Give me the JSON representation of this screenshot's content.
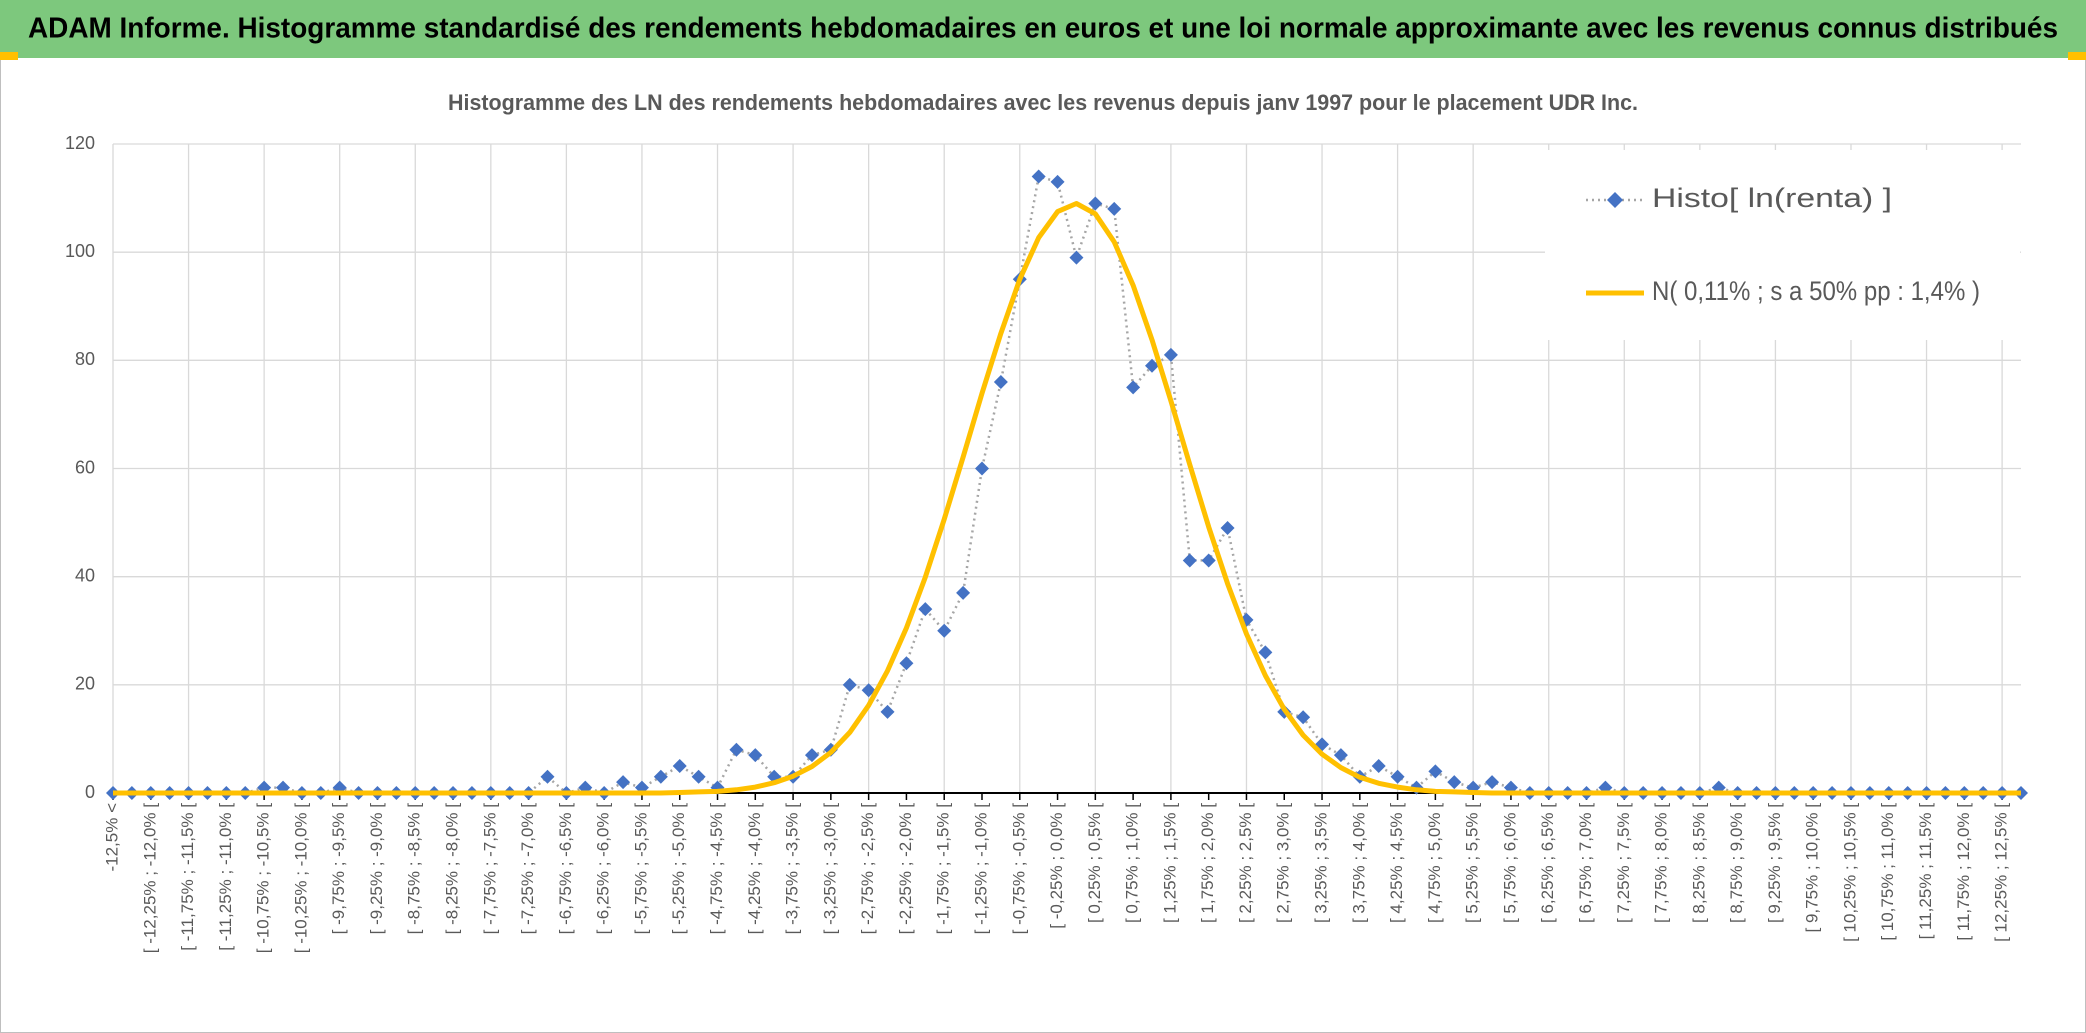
{
  "header": {
    "title": "ADAM Informe. Histogramme standardisé des rendements hebdomadaires en euros et une loi normale approximante avec les revenus connus distribués"
  },
  "chart_data": {
    "type": "line",
    "title": "Histogramme des LN des rendements hebdomadaires avec les revenus depuis janv 1997 pour le placement UDR Inc.",
    "categories": [
      "-12,5% <",
      null,
      "[ -12,25% ; -12,0% [",
      null,
      "[ -11,75% ; -11,5% [",
      null,
      "[ -11,25% ; -11,0% [",
      null,
      "[ -10,75% ; -10,5% [",
      null,
      "[ -10,25% ; -10,0% [",
      null,
      "[ -9,75% ; -9,5% [",
      null,
      "[ -9,25% ; -9,0% [",
      null,
      "[ -8,75% ; -8,5% [",
      null,
      "[ -8,25% ; -8,0% [",
      null,
      "[ -7,75% ; -7,5% [",
      null,
      "[ -7,25% ; -7,0% [",
      null,
      "[ -6,75% ; -6,5% [",
      null,
      "[ -6,25% ; -6,0% [",
      null,
      "[ -5,75% ; -5,5% [",
      null,
      "[ -5,25% ; -5,0% [",
      null,
      "[ -4,75% ; -4,5% [",
      null,
      "[ -4,25% ; -4,0% [",
      null,
      "[ -3,75% ; -3,5% [",
      null,
      "[ -3,25% ; -3,0% [",
      null,
      "[ -2,75% ; -2,5% [",
      null,
      "[ -2,25% ; -2,0% [",
      null,
      "[ -1,75% ; -1,5% [",
      null,
      "[ -1,25% ; -1,0% [",
      null,
      "[ -0,75% ; -0,5% [",
      null,
      "[ -0,25% ; 0,0% [",
      null,
      "[ 0,25% ; 0,5% [",
      null,
      "[ 0,75% ; 1,0% [",
      null,
      "[ 1,25% ; 1,5% [",
      null,
      "[ 1,75% ; 2,0% [",
      null,
      "[ 2,25% ; 2,5% [",
      null,
      "[ 2,75% ; 3,0% [",
      null,
      "[ 3,25% ; 3,5% [",
      null,
      "[ 3,75% ; 4,0% [",
      null,
      "[ 4,25% ; 4,5% [",
      null,
      "[ 4,75% ; 5,0% [",
      null,
      "[ 5,25% ; 5,5% [",
      null,
      "[ 5,75% ; 6,0% [",
      null,
      "[ 6,25% ; 6,5% [",
      null,
      "[ 6,75% ; 7,0% [",
      null,
      "[ 7,25% ; 7,5% [",
      null,
      "[ 7,75% ; 8,0% [",
      null,
      "[ 8,25% ; 8,5% [",
      null,
      "[ 8,75% ; 9,0% [",
      null,
      "[ 9,25% ; 9,5% [",
      null,
      "[ 9,75% ; 10,0% [",
      null,
      "[ 10,25% ; 10,5% [",
      null,
      "[ 10,75% ; 11,0% [",
      null,
      "[ 11,25% ; 11,5% [",
      null,
      "[ 11,75% ; 12,0% [",
      null,
      "[ 12,25% ; 12,5% [",
      null
    ],
    "series": [
      {
        "name": "Histo[ ln(renta) ]",
        "color": "#4472c4",
        "values": [
          0,
          0,
          0,
          0,
          0,
          0,
          0,
          0,
          1,
          1,
          0,
          0,
          1,
          0,
          0,
          0,
          0,
          0,
          0,
          0,
          0,
          0,
          0,
          3,
          0,
          1,
          0,
          2,
          1,
          3,
          5,
          3,
          1,
          8,
          7,
          3,
          3,
          7,
          8,
          20,
          19,
          15,
          24,
          34,
          30,
          37,
          60,
          76,
          95,
          114,
          113,
          99,
          109,
          108,
          75,
          79,
          81,
          43,
          43,
          49,
          32,
          26,
          15,
          14,
          9,
          7,
          3,
          5,
          3,
          1,
          4,
          2,
          1,
          2,
          1,
          0,
          0,
          0,
          0,
          1,
          0,
          0,
          0,
          0,
          0,
          1,
          0,
          0,
          0,
          0,
          0,
          0,
          0,
          0,
          0,
          0,
          0,
          0,
          0,
          0,
          0,
          0
        ]
      },
      {
        "name": "N( 0,11% ; s a 50% pp : 1,4% )",
        "color": "#ffc000",
        "values": [
          0,
          0,
          0,
          0,
          0,
          0,
          0,
          0,
          0,
          0,
          0,
          0,
          0,
          0,
          0,
          0,
          0,
          0,
          0,
          0,
          0,
          0,
          0,
          0,
          0,
          0,
          0,
          0,
          0,
          0,
          0.1,
          0.2,
          0.3,
          0.6,
          1.1,
          1.9,
          3.1,
          4.9,
          7.5,
          11.2,
          16.2,
          22.6,
          30.5,
          39.9,
          50.6,
          62.1,
          73.9,
          85.0,
          95.0,
          102.7,
          107.5,
          109,
          107.1,
          101.9,
          93.9,
          83.8,
          72.5,
          60.7,
          49.2,
          38.7,
          29.4,
          21.7,
          15.5,
          10.7,
          7.2,
          4.7,
          2.9,
          1.8,
          1.1,
          0.6,
          0.3,
          0.2,
          0.1,
          0,
          0,
          0,
          0,
          0,
          0,
          0,
          0,
          0,
          0,
          0,
          0,
          0,
          0,
          0,
          0,
          0,
          0,
          0,
          0,
          0,
          0,
          0,
          0,
          0,
          0,
          0,
          0,
          0
        ]
      }
    ],
    "ylim": [
      0,
      120
    ],
    "yticks": [
      0,
      20,
      40,
      60,
      80,
      100,
      120
    ],
    "grid": true,
    "legend": "upper right"
  }
}
